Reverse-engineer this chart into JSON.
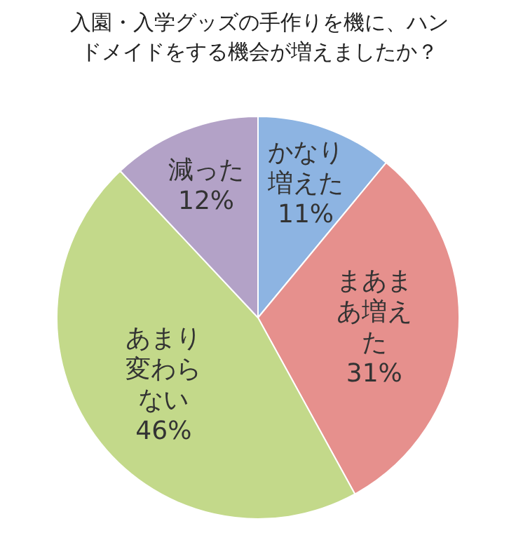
{
  "chart_data": {
    "type": "pie",
    "title": "入園・入学グッズの手作りを機に、ハンドメイドをする機会が増えましたか？",
    "categories": [
      "かなり増えた",
      "まあまあ増えた",
      "あまり変わらない",
      "減った"
    ],
    "values": [
      11,
      31,
      46,
      12
    ],
    "value_labels": [
      "11%",
      "31%",
      "46%",
      "12%"
    ],
    "colors": [
      "#8db4e2",
      "#e6908d",
      "#c3d98a",
      "#b3a2c7"
    ],
    "legend": false
  }
}
